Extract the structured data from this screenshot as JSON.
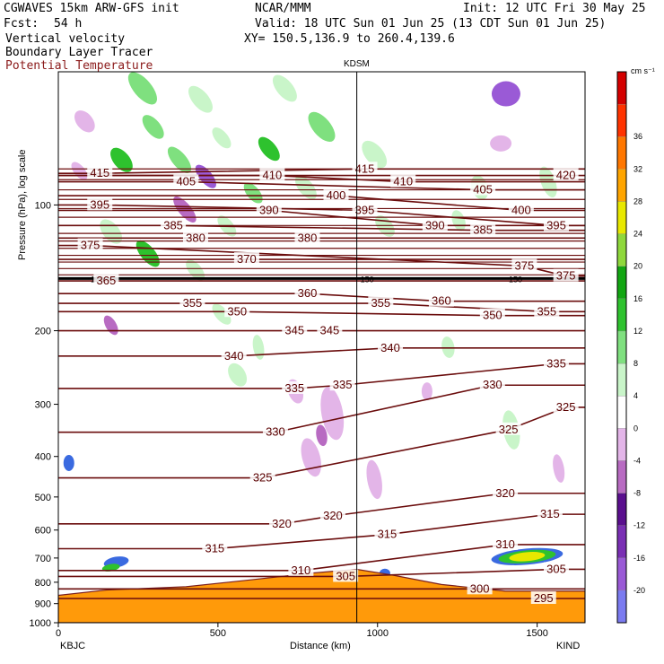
{
  "header": {
    "model": "CGWAVES 15km ARW-GFS init",
    "center": "NCAR/MMM",
    "init": "Init: 12 UTC Fri 30 May 25",
    "fcst_label": "Fcst:",
    "fcst_value": "54 h",
    "valid": "Valid: 18 UTC Sun 01 Jun 25 (13 CDT Sun 01 Jun 25)",
    "xy": "XY= 150.5,136.9 to 260.4,139.6",
    "field1": "Vertical velocity",
    "field2": "Boundary Layer Tracer",
    "field3": "Potential Temperature",
    "field3_color": "#8b1a1a"
  },
  "chart_data": {
    "type": "heatmap",
    "xlabel": "Distance (km)",
    "ylabel": "Pressure (hPa), log scale",
    "xlim": [
      0,
      1650
    ],
    "ylim": [
      1000,
      48
    ],
    "x_ticks": [
      0,
      500,
      1000,
      1500
    ],
    "y_ticks": [
      100,
      200,
      300,
      400,
      500,
      600,
      700,
      800,
      900,
      1000
    ],
    "x_endpoints": {
      "left": "KBJC",
      "right": "KIND"
    },
    "midpoint_station": "KDSM",
    "midpoint_km": 935,
    "tropopause_line_label": "150",
    "tropopause_p": 150,
    "colorbar": {
      "unit": "cm s⁻¹",
      "levels": [
        -20,
        -16,
        -12,
        -8,
        -4,
        0,
        4,
        8,
        12,
        16,
        20,
        24,
        28,
        32,
        36
      ],
      "colors": [
        "#7b7bf0",
        "#9a5ad6",
        "#7a2fb4",
        "#5a0f8e",
        "#b86bc2",
        "#e3b5e8",
        "#ffffff",
        "#c9f5c9",
        "#7fe07f",
        "#2ec22e",
        "#12a612",
        "#8fd83c",
        "#e8e800",
        "#ffa500",
        "#ff7700",
        "#ff3300",
        "#d40000"
      ]
    },
    "theta_labels": [
      {
        "v": 415,
        "x": 130,
        "p": 84
      },
      {
        "v": 405,
        "x": 400,
        "p": 88
      },
      {
        "v": 410,
        "x": 670,
        "p": 85
      },
      {
        "v": 415,
        "x": 960,
        "p": 82
      },
      {
        "v": 410,
        "x": 1080,
        "p": 88
      },
      {
        "v": 405,
        "x": 1330,
        "p": 92
      },
      {
        "v": 420,
        "x": 1590,
        "p": 85
      },
      {
        "v": 395,
        "x": 130,
        "p": 100
      },
      {
        "v": 385,
        "x": 360,
        "p": 112
      },
      {
        "v": 390,
        "x": 660,
        "p": 103
      },
      {
        "v": 400,
        "x": 870,
        "p": 95
      },
      {
        "v": 395,
        "x": 960,
        "p": 103
      },
      {
        "v": 390,
        "x": 1180,
        "p": 112
      },
      {
        "v": 385,
        "x": 1330,
        "p": 115
      },
      {
        "v": 400,
        "x": 1450,
        "p": 103
      },
      {
        "v": 395,
        "x": 1560,
        "p": 112
      },
      {
        "v": 375,
        "x": 100,
        "p": 125
      },
      {
        "v": 380,
        "x": 430,
        "p": 120
      },
      {
        "v": 380,
        "x": 780,
        "p": 120
      },
      {
        "v": 370,
        "x": 590,
        "p": 135
      },
      {
        "v": 375,
        "x": 1460,
        "p": 140
      },
      {
        "v": 375,
        "x": 1590,
        "p": 148
      },
      {
        "v": 365,
        "x": 150,
        "p": 152
      },
      {
        "v": 355,
        "x": 420,
        "p": 172
      },
      {
        "v": 350,
        "x": 560,
        "p": 180
      },
      {
        "v": 360,
        "x": 780,
        "p": 163
      },
      {
        "v": 355,
        "x": 1010,
        "p": 172
      },
      {
        "v": 360,
        "x": 1200,
        "p": 170
      },
      {
        "v": 350,
        "x": 1360,
        "p": 184
      },
      {
        "v": 355,
        "x": 1530,
        "p": 180
      },
      {
        "v": 345,
        "x": 740,
        "p": 200
      },
      {
        "v": 345,
        "x": 850,
        "p": 200
      },
      {
        "v": 340,
        "x": 550,
        "p": 230
      },
      {
        "v": 340,
        "x": 1040,
        "p": 220
      },
      {
        "v": 335,
        "x": 1560,
        "p": 240
      },
      {
        "v": 335,
        "x": 740,
        "p": 275
      },
      {
        "v": 335,
        "x": 890,
        "p": 270
      },
      {
        "v": 330,
        "x": 1360,
        "p": 270
      },
      {
        "v": 325,
        "x": 1590,
        "p": 305
      },
      {
        "v": 330,
        "x": 680,
        "p": 350
      },
      {
        "v": 325,
        "x": 1410,
        "p": 345
      },
      {
        "v": 325,
        "x": 640,
        "p": 450
      },
      {
        "v": 320,
        "x": 1400,
        "p": 490
      },
      {
        "v": 315,
        "x": 1540,
        "p": 550
      },
      {
        "v": 320,
        "x": 700,
        "p": 580
      },
      {
        "v": 320,
        "x": 860,
        "p": 555
      },
      {
        "v": 315,
        "x": 1030,
        "p": 615
      },
      {
        "v": 315,
        "x": 490,
        "p": 665
      },
      {
        "v": 310,
        "x": 760,
        "p": 750
      },
      {
        "v": 305,
        "x": 900,
        "p": 775
      },
      {
        "v": 310,
        "x": 1400,
        "p": 650
      },
      {
        "v": 305,
        "x": 1560,
        "p": 745
      },
      {
        "v": 300,
        "x": 1320,
        "p": 830
      },
      {
        "v": 295,
        "x": 1520,
        "p": 875
      }
    ]
  }
}
